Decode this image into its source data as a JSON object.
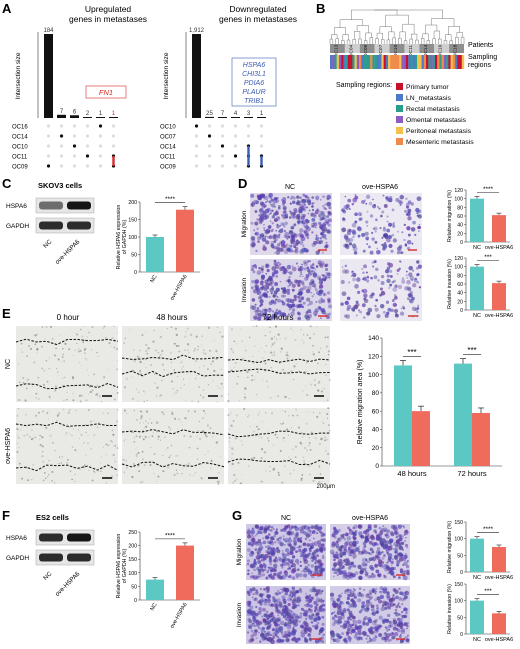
{
  "panels": {
    "A": {
      "letter": "A",
      "left_chart": {
        "title_line1": "Upregulated",
        "title_line2": "genes in metastases",
        "ylabel": "Intersection size",
        "bar_values": [
          184,
          7,
          6,
          2,
          1,
          1
        ],
        "bar_labels": [
          "184",
          "7",
          "6",
          "2",
          "1",
          "1"
        ],
        "highlight_gene": "FN1",
        "sets": [
          "OC16",
          "OC14",
          "OC10",
          "OC11",
          "OC09"
        ]
      },
      "right_chart": {
        "title_line1": "Downregulated",
        "title_line2": "genes in metastases",
        "ylabel": "Intersection size",
        "bar_values": [
          1912,
          25,
          7,
          4,
          3,
          1
        ],
        "bar_labels": [
          "1,912",
          "25",
          "7",
          "4",
          "3",
          "1"
        ],
        "highlight_genes": [
          "HSPA6",
          "CHI3L1",
          "PDIA6",
          "PLAUR",
          "TRIB1"
        ],
        "sets": [
          "OC10",
          "OC07",
          "OC14",
          "OC11",
          "OC09"
        ]
      }
    },
    "B": {
      "letter": "B",
      "clusters": [
        "OC13",
        "OC04",
        "OC09",
        "OC07",
        "OC10",
        "OC11",
        "OC14",
        "OC16",
        "OC18"
      ],
      "row_labels": [
        "Patients",
        "Sampling",
        "regions"
      ],
      "legend_title": "Sampling regions:",
      "legend": [
        {
          "label": "Primary tumor",
          "color": "#c8102e"
        },
        {
          "label": "LN_metastasis",
          "color": "#4f78c8"
        },
        {
          "label": "Rectal metastasis",
          "color": "#2a9d8f"
        },
        {
          "label": "Omental metastasis",
          "color": "#8e5cc0"
        },
        {
          "label": "Peritoneal metastasis",
          "color": "#f2c14e"
        },
        {
          "label": "Mesenteric metastasis",
          "color": "#f08a4b"
        }
      ]
    },
    "C": {
      "letter": "C",
      "cell_line": "SKOV3 cells",
      "blot_rows": [
        "HSPA6",
        "GAPDH"
      ],
      "lanes": [
        "NC",
        "ove-HSPA6"
      ],
      "ylabel_line1": "Relative HSPA6 expression",
      "ylabel_line2": "of GAPDH (%)",
      "values": [
        100,
        178
      ],
      "yticks": [
        "0",
        "50",
        "100",
        "150",
        "200"
      ],
      "ymax": 200,
      "significance": "****"
    },
    "D": {
      "letter": "D",
      "col_labels": [
        "NC",
        "ove-HSPA6"
      ],
      "row_labels": [
        "Migration",
        "Invasion"
      ],
      "migration": {
        "ylabel": "Relative migration (%)",
        "values": [
          100,
          62
        ],
        "yticks": [
          "0",
          "20",
          "40",
          "60",
          "80",
          "100",
          "120"
        ],
        "ymax": 120,
        "significance": "****"
      },
      "invasion": {
        "ylabel": "Relative invasion (%)",
        "values": [
          100,
          62
        ],
        "yticks": [
          "0",
          "20",
          "40",
          "60",
          "80",
          "100",
          "120"
        ],
        "ymax": 120,
        "significance": "***"
      },
      "categories": [
        "NC",
        "ove-HSPA6"
      ]
    },
    "E": {
      "letter": "E",
      "time_labels": [
        "0 hour",
        "48 hours",
        "72 hours"
      ],
      "row_labels": [
        "NC",
        "ove-HSPA6"
      ],
      "scale_bar": "200μm",
      "chart": {
        "ylabel": "Relative migration area (%)",
        "categories": [
          "48 hours",
          "72 hours"
        ],
        "series": [
          {
            "name": "NC",
            "values": [
              110,
              112
            ],
            "color": "#5cc8c4"
          },
          {
            "name": "ove-HSPA6",
            "values": [
              60,
              58
            ],
            "color": "#ef6b5c"
          }
        ],
        "yticks": [
          "0",
          "20",
          "40",
          "60",
          "80",
          "100",
          "120",
          "140"
        ],
        "ymax": 140,
        "significance": [
          "***",
          "***"
        ]
      }
    },
    "F": {
      "letter": "F",
      "cell_line": "ES2 cells",
      "blot_rows": [
        "HSPA6",
        "GAPDH"
      ],
      "lanes": [
        "NC",
        "ove-HSPA6"
      ],
      "ylabel_line1": "Relative HSPA6 expression",
      "ylabel_line2": "of GAPDH (%)",
      "values": [
        75,
        200
      ],
      "yticks": [
        "0",
        "50",
        "100",
        "150",
        "200",
        "250"
      ],
      "ymax": 250,
      "significance": "****"
    },
    "G": {
      "letter": "G",
      "col_labels": [
        "NC",
        "ove-HSPA6"
      ],
      "row_labels": [
        "Migration",
        "Invasion"
      ],
      "migration": {
        "ylabel": "Relative migration (%)",
        "values": [
          100,
          75
        ],
        "yticks": [
          "0",
          "50",
          "100",
          "150"
        ],
        "ymax": 150,
        "significance": "****"
      },
      "invasion": {
        "ylabel": "Relative invasion (%)",
        "values": [
          100,
          62
        ],
        "yticks": [
          "0",
          "50",
          "100",
          "150"
        ],
        "ymax": 150,
        "significance": "***"
      },
      "categories": [
        "NC",
        "ove-HSPA6"
      ]
    }
  },
  "colors": {
    "teal": "#5cc8c4",
    "coral": "#ef6b5c",
    "cell_purple": "#6a5aa8",
    "highlight_red": "#d62b2b",
    "highlight_blue": "#3b5bb5"
  }
}
